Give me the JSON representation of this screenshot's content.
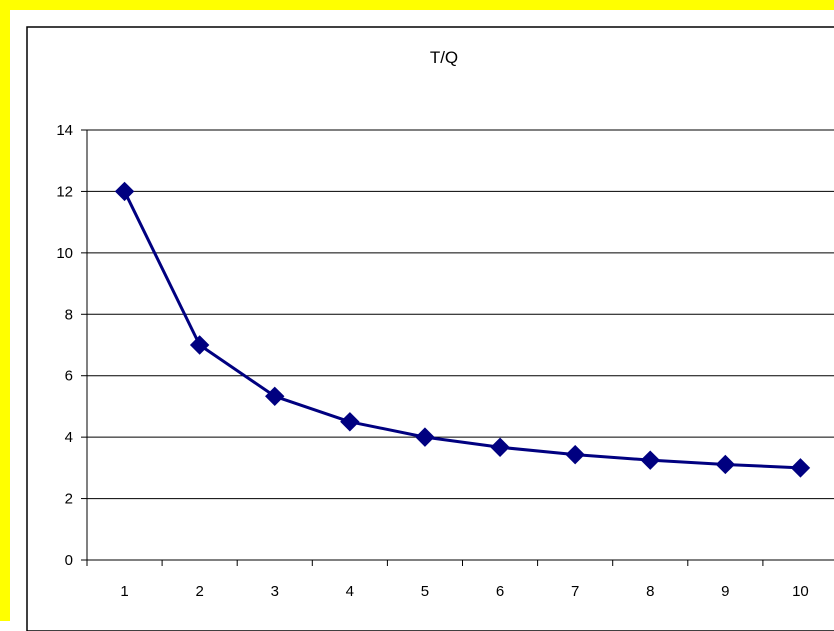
{
  "page": {
    "border_color": "#FFFF00"
  },
  "chart_data": {
    "type": "line",
    "title": "T/Q",
    "xlabel": "",
    "ylabel": "",
    "categories": [
      "1",
      "2",
      "3",
      "4",
      "5",
      "6",
      "7",
      "8",
      "9",
      "10"
    ],
    "series": [
      {
        "values": [
          12,
          7,
          5.33,
          4.5,
          4,
          3.67,
          3.43,
          3.25,
          3.11,
          3
        ],
        "color": "#000080",
        "marker": "diamond"
      }
    ],
    "ylim": [
      0,
      14
    ],
    "yticks": [
      "0",
      "2",
      "4",
      "6",
      "8",
      "10",
      "12",
      "14"
    ],
    "grid": "horizontal",
    "legend": "none"
  }
}
